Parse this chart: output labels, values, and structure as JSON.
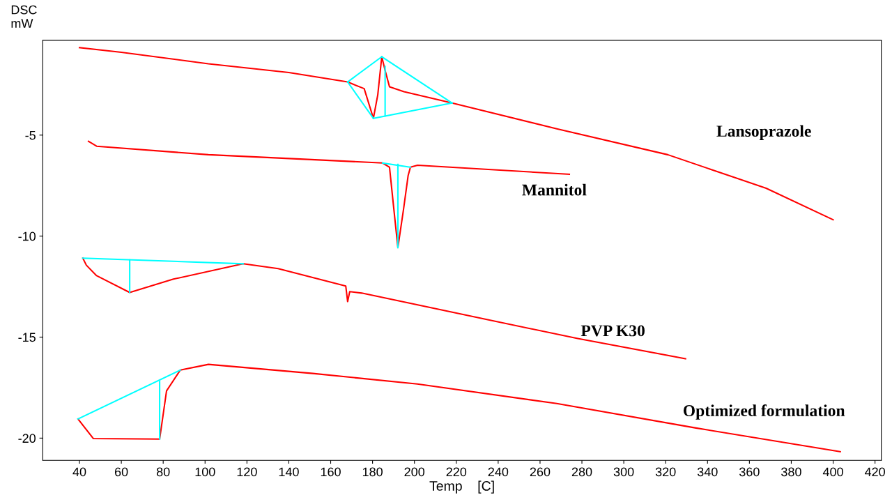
{
  "chart_data": {
    "type": "line",
    "ylabel": "DSC\nmW",
    "xlabel": "Temp    [C]",
    "xlim": [
      22.5,
      423
    ],
    "ylim": [
      -21.1,
      -0.3
    ],
    "xticks": [
      40,
      60,
      80,
      100,
      120,
      140,
      160,
      180,
      200,
      220,
      240,
      260,
      280,
      300,
      320,
      340,
      360,
      380,
      400,
      420
    ],
    "yticks": [
      -5,
      -10,
      -15,
      -20
    ],
    "grid": false,
    "legend": false,
    "marker": "none",
    "line_style": "solid",
    "series": [
      {
        "color": "#ff0000",
        "x": [
          40,
          60,
          101.6,
          140,
          168.1,
          176,
          180.4,
          182.5,
          184.4,
          186,
          188.1,
          195,
          218,
          268,
          321,
          368,
          400
        ],
        "values": [
          -0.67,
          -0.9,
          -1.47,
          -1.9,
          -2.37,
          -2.7,
          -4.17,
          -3.0,
          -1.12,
          -1.8,
          -2.61,
          -2.85,
          -3.41,
          -4.69,
          -5.97,
          -7.63,
          -9.19
        ]
      },
      {
        "color": "#ff0000",
        "x": [
          44.3,
          48.2,
          101.6,
          184.8,
          188.1,
          190,
          192.1,
          194.8,
          197,
          198.1,
          201.5,
          274
        ],
        "values": [
          -5.31,
          -5.55,
          -5.97,
          -6.38,
          -6.59,
          -8.5,
          -10.57,
          -8.67,
          -7.0,
          -6.59,
          -6.49,
          -6.94
        ]
      },
      {
        "color": "#ff0000",
        "x": [
          41.6,
          43.3,
          48.2,
          64,
          84.9,
          118.2,
          134.9,
          167.2,
          168.1,
          169.1,
          174.8,
          234.6,
          278,
          329.5
        ],
        "values": [
          -11.09,
          -11.44,
          -11.96,
          -12.79,
          -12.13,
          -11.37,
          -11.61,
          -12.47,
          -13.24,
          -12.75,
          -12.82,
          -14.13,
          -15.07,
          -16.07
        ]
      },
      {
        "color": "#ff0000",
        "x": [
          39.3,
          46.6,
          78.3,
          81.6,
          88.2,
          101.6,
          151.5,
          201.4,
          268,
          334.5,
          403.4
        ],
        "values": [
          -19.05,
          -20.02,
          -20.05,
          -17.66,
          -16.63,
          -16.35,
          -16.8,
          -17.32,
          -18.29,
          -19.5,
          -20.67
        ]
      },
      {
        "color": "#00ffff",
        "x": [
          168.1,
          184.4
        ],
        "values": [
          -2.37,
          -1.12
        ]
      },
      {
        "color": "#00ffff",
        "x": [
          184.4,
          218
        ],
        "values": [
          -1.12,
          -3.41
        ]
      },
      {
        "color": "#00ffff",
        "x": [
          180.4,
          218
        ],
        "values": [
          -4.17,
          -3.41
        ]
      },
      {
        "color": "#00ffff",
        "x": [
          168.1,
          180.4
        ],
        "values": [
          -2.37,
          -4.17
        ]
      },
      {
        "color": "#00ffff",
        "x": [
          186,
          186
        ],
        "values": [
          -1.6,
          -4.05
        ]
      },
      {
        "color": "#00ffff",
        "x": [
          184.8,
          198.1
        ],
        "values": [
          -6.38,
          -6.59
        ]
      },
      {
        "color": "#00ffff",
        "x": [
          192.1,
          192.1
        ],
        "values": [
          -6.45,
          -10.57
        ]
      },
      {
        "color": "#00ffff",
        "x": [
          41.6,
          118.2
        ],
        "values": [
          -11.09,
          -11.37
        ]
      },
      {
        "color": "#00ffff",
        "x": [
          64,
          64
        ],
        "values": [
          -11.18,
          -12.79
        ]
      },
      {
        "color": "#00ffff",
        "x": [
          39.3,
          88.2
        ],
        "values": [
          -19.05,
          -16.63
        ]
      },
      {
        "color": "#00ffff",
        "x": [
          78.3,
          78.3
        ],
        "values": [
          -17.2,
          -20.05
        ]
      }
    ],
    "annotations": [
      "Lansoprazole",
      "Mannitol",
      "PVP K30",
      "Optimized formulation"
    ]
  }
}
